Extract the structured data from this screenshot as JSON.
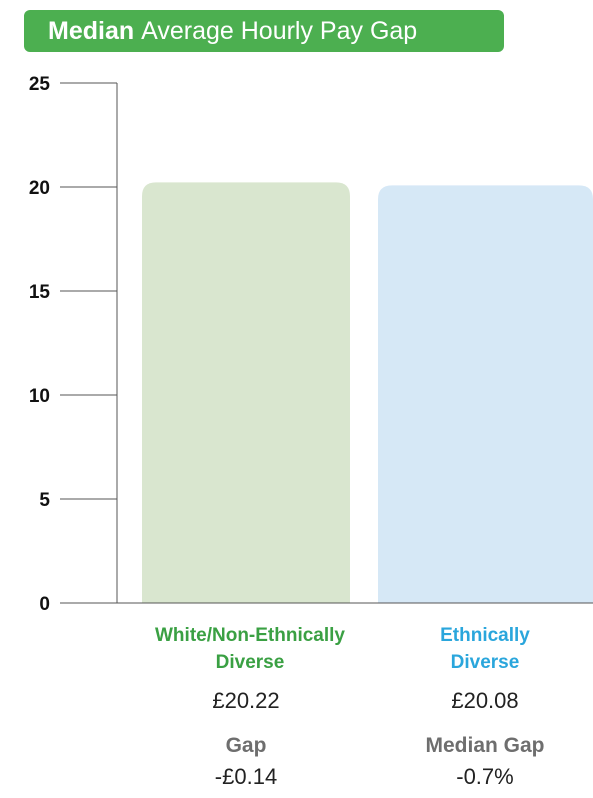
{
  "title": {
    "bold": "Median",
    "rest": "Average Hourly Pay Gap"
  },
  "colors": {
    "banner": "#4caf50",
    "bar_white": "#d9e6cf",
    "bar_ethnic": "#d6e8f6",
    "label_white": "#3aa043",
    "label_ethnic": "#2aa6dc",
    "axis": "#555555"
  },
  "chart_data": {
    "type": "bar",
    "categories": [
      "White/Non-Ethnically Diverse",
      "Ethnically Diverse"
    ],
    "values": [
      20.22,
      20.08
    ],
    "ylim": [
      0,
      25
    ],
    "yticks": [
      0,
      5,
      10,
      15,
      20,
      25
    ],
    "grid": false
  },
  "labels": {
    "white_line1": "White/Non-Ethnically",
    "white_line2": "Diverse",
    "white_value": "£20.22",
    "ethnic_line1": "Ethnically",
    "ethnic_line2": "Diverse",
    "ethnic_value": "£20.08"
  },
  "stats": {
    "gap_label": "Gap",
    "gap_value": "-£0.14",
    "median_gap_label": "Median Gap",
    "median_gap_value": "-0.7%"
  }
}
